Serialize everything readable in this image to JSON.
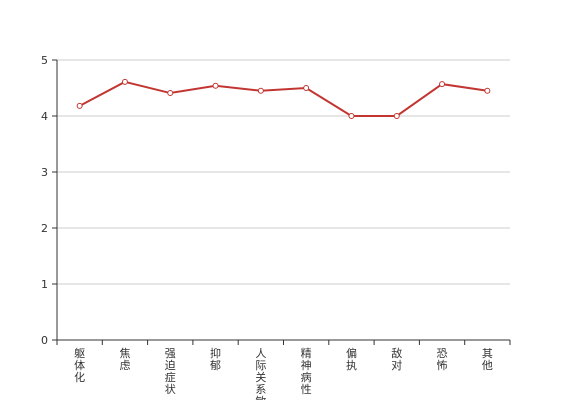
{
  "chart_data": {
    "type": "line",
    "categories": [
      "躯体化",
      "焦虑",
      "强迫症状",
      "抑郁",
      "人际关系敏感",
      "精神病性",
      "偏执",
      "敌对",
      "恐怖",
      "其他"
    ],
    "values": [
      4.18,
      4.61,
      4.41,
      4.54,
      4.45,
      4.5,
      4.0,
      4.0,
      4.57,
      4.45
    ],
    "color": "#c23531",
    "ylim": [
      0,
      5
    ],
    "yticks": [
      0,
      1,
      2,
      3,
      4,
      5
    ],
    "grid": true
  }
}
